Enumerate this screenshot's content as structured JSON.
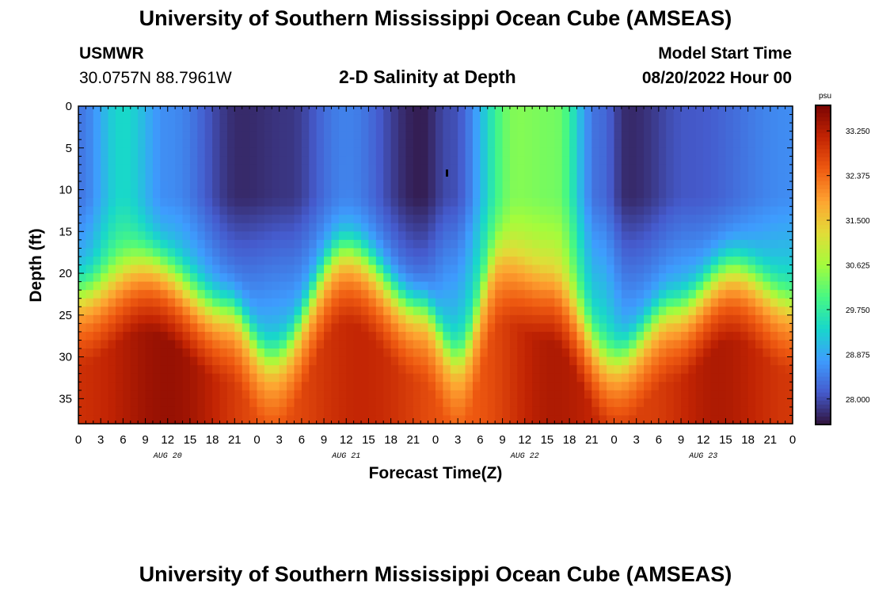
{
  "header": {
    "title": "University of Southern Mississippi Ocean Cube (AMSEAS)",
    "station": "USMWR",
    "coords": "30.0757N  88.7961W",
    "plot_title": "2-D Salinity at Depth",
    "model_start_label": "Model Start Time",
    "model_start_value": "08/20/2022 Hour 00"
  },
  "footer": {
    "title": "University of Southern Mississippi Ocean Cube (AMSEAS)"
  },
  "chart_data": {
    "type": "heatmap",
    "title": "2-D Salinity at Depth",
    "xlabel": "Forecast Time(Z)",
    "ylabel": "Depth (ft)",
    "x_unit": "hours since 08/20/2022 00Z",
    "x_range": [
      0,
      96
    ],
    "x_tick_labels": [
      "0",
      "3",
      "6",
      "9",
      "12",
      "15",
      "18",
      "21",
      "0",
      "3",
      "6",
      "9",
      "12",
      "15",
      "18",
      "21",
      "0",
      "3",
      "6",
      "9",
      "12",
      "15",
      "18",
      "21",
      "0",
      "3",
      "6",
      "9",
      "12",
      "15",
      "18",
      "21",
      "0"
    ],
    "day_labels": [
      {
        "label": "AUG 20",
        "hour": 12
      },
      {
        "label": "AUG 21",
        "hour": 36
      },
      {
        "label": "AUG 22",
        "hour": 60
      },
      {
        "label": "AUG 23",
        "hour": 84
      }
    ],
    "y_range": [
      0,
      38
    ],
    "y_ticks": [
      0,
      5,
      10,
      15,
      20,
      25,
      30,
      35
    ],
    "y_tick_labels": [
      "0",
      "5",
      "10",
      "15",
      "20",
      "25",
      "30",
      "35"
    ],
    "colorbar": {
      "unit": "psu",
      "range": [
        27.5,
        33.75
      ],
      "ticks": [
        33.25,
        32.375,
        31.5,
        30.625,
        29.75,
        28.875,
        28.0
      ],
      "tick_labels": [
        "33.250",
        "32.375",
        "31.500",
        "30.625",
        "29.750",
        "28.875",
        "28.000"
      ],
      "colormap": "turbo"
    },
    "surface_salinity_psu": [
      {
        "hour": 0,
        "value": 28.4
      },
      {
        "hour": 6,
        "value": 29.4
      },
      {
        "hour": 12,
        "value": 28.6
      },
      {
        "hour": 22,
        "value": 27.7
      },
      {
        "hour": 28,
        "value": 27.8
      },
      {
        "hour": 36,
        "value": 28.5
      },
      {
        "hour": 46,
        "value": 27.6
      },
      {
        "hour": 50,
        "value": 28.0
      },
      {
        "hour": 59,
        "value": 30.4
      },
      {
        "hour": 64,
        "value": 30.3
      },
      {
        "hour": 70,
        "value": 28.3
      },
      {
        "hour": 74,
        "value": 27.7
      },
      {
        "hour": 82,
        "value": 28.1
      },
      {
        "hour": 96,
        "value": 28.6
      }
    ],
    "halocline_depth_ft": [
      {
        "hour": 0,
        "value": 22
      },
      {
        "hour": 9,
        "value": 18
      },
      {
        "hour": 20,
        "value": 24
      },
      {
        "hour": 26,
        "value": 30
      },
      {
        "hour": 36,
        "value": 17
      },
      {
        "hour": 46,
        "value": 24
      },
      {
        "hour": 51,
        "value": 30
      },
      {
        "hour": 57,
        "value": 17
      },
      {
        "hour": 63,
        "value": 19
      },
      {
        "hour": 72,
        "value": 30
      },
      {
        "hour": 80,
        "value": 24
      },
      {
        "hour": 88,
        "value": 19
      },
      {
        "hour": 96,
        "value": 23
      }
    ],
    "bottom_salinity_psu": [
      {
        "hour": 0,
        "value": 33.0
      },
      {
        "hour": 12,
        "value": 33.5
      },
      {
        "hour": 26,
        "value": 32.6
      },
      {
        "hour": 38,
        "value": 33.1
      },
      {
        "hour": 52,
        "value": 32.5
      },
      {
        "hour": 64,
        "value": 33.3
      },
      {
        "hour": 76,
        "value": 32.8
      },
      {
        "hour": 86,
        "value": 33.3
      },
      {
        "hour": 96,
        "value": 32.9
      }
    ]
  }
}
